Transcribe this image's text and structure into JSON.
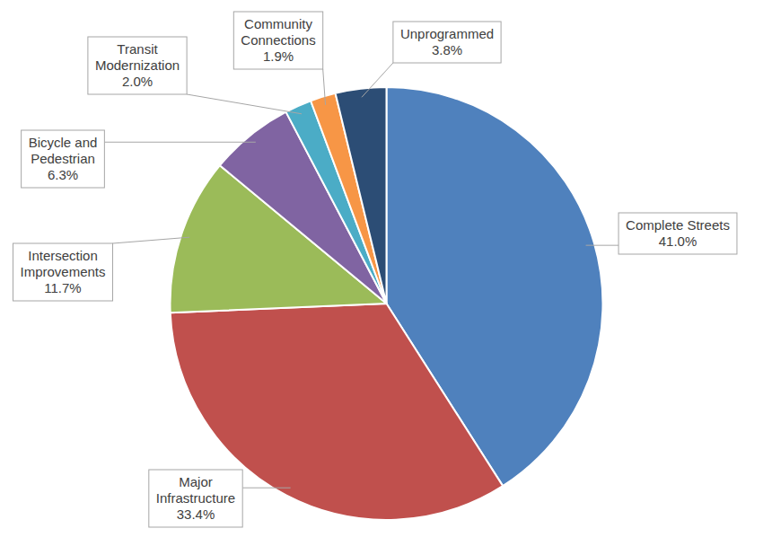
{
  "chart_data": {
    "type": "pie",
    "categories": [
      "Complete Streets",
      "Major Infrastructure",
      "Intersection Improvements",
      "Bicycle and Pedestrian",
      "Transit Modernization",
      "Community Connections",
      "Unprogrammed"
    ],
    "values": [
      41.0,
      33.4,
      11.7,
      6.3,
      2.0,
      1.9,
      3.8
    ],
    "value_labels": [
      "41.0%",
      "33.4%",
      "11.7%",
      "6.3%",
      "2.0%",
      "1.9%",
      "3.8%"
    ],
    "colors": [
      "#4f81bd",
      "#c0504d",
      "#9bbb59",
      "#8064a2",
      "#4bacc6",
      "#f79646",
      "#2c4d75"
    ],
    "data_labels": true
  }
}
